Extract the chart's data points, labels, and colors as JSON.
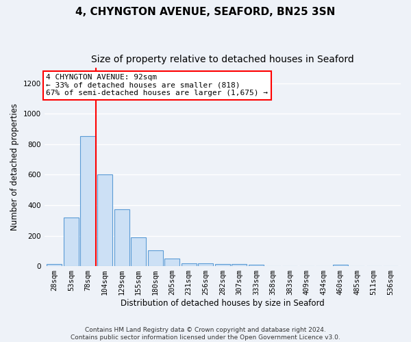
{
  "title": "4, CHYNGTON AVENUE, SEAFORD, BN25 3SN",
  "subtitle": "Size of property relative to detached houses in Seaford",
  "xlabel": "Distribution of detached houses by size in Seaford",
  "ylabel": "Number of detached properties",
  "categories": [
    "28sqm",
    "53sqm",
    "78sqm",
    "104sqm",
    "129sqm",
    "155sqm",
    "180sqm",
    "205sqm",
    "231sqm",
    "256sqm",
    "282sqm",
    "307sqm",
    "333sqm",
    "358sqm",
    "383sqm",
    "409sqm",
    "434sqm",
    "460sqm",
    "485sqm",
    "511sqm",
    "536sqm"
  ],
  "values": [
    15,
    320,
    855,
    600,
    375,
    190,
    105,
    50,
    20,
    18,
    15,
    15,
    10,
    0,
    0,
    0,
    0,
    10,
    0,
    0,
    0
  ],
  "bar_color": "#cce0f5",
  "bar_edge_color": "#5b9bd5",
  "vline_x_index": 2.45,
  "vline_color": "red",
  "annotation_line1": "4 CHYNGTON AVENUE: 92sqm",
  "annotation_line2": "← 33% of detached houses are smaller (818)",
  "annotation_line3": "67% of semi-detached houses are larger (1,675) →",
  "annotation_box_color": "white",
  "annotation_box_edge_color": "red",
  "ylim": [
    0,
    1300
  ],
  "yticks": [
    0,
    200,
    400,
    600,
    800,
    1000,
    1200
  ],
  "footer": "Contains HM Land Registry data © Crown copyright and database right 2024.\nContains public sector information licensed under the Open Government Licence v3.0.",
  "background_color": "#eef2f8",
  "grid_color": "white",
  "title_fontsize": 11,
  "subtitle_fontsize": 10,
  "axis_label_fontsize": 8.5,
  "tick_fontsize": 7.5,
  "annotation_fontsize": 8
}
